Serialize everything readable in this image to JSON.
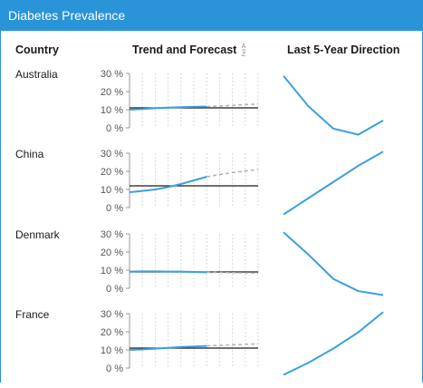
{
  "title": "Diabetes Prevalence",
  "headers": {
    "country": "Country",
    "trend": "Trend and Forecast",
    "direction": "Last 5-Year Direction"
  },
  "sort_icon_glyph": "A→Z",
  "y_ticks": [
    "30 %",
    "20 %",
    "10 %",
    "0 %"
  ],
  "colors": {
    "accent": "#2b94d9",
    "trend_line": "#3aa0e0",
    "forecast_line": "#b0b0b0",
    "reference_line": "#1a1a1a",
    "gridline": "#d8d8d8"
  },
  "chart_data": [
    {
      "type": "line",
      "title": "Australia",
      "ylim": [
        0,
        30
      ],
      "trend": [
        10,
        10.4,
        10.8,
        11.1,
        11.4,
        11.6,
        11.7
      ],
      "forecast": [
        11.7,
        12.0,
        12.4,
        12.8,
        13.1
      ],
      "reference": 11,
      "direction": [
        31,
        16,
        5,
        2,
        9
      ]
    },
    {
      "type": "line",
      "title": "China",
      "ylim": [
        0,
        30
      ],
      "trend": [
        8.5,
        9.2,
        10,
        11.3,
        13,
        15,
        17
      ],
      "forecast": [
        17,
        18.2,
        19.3,
        20.2,
        21
      ],
      "reference": 12,
      "direction": [
        2,
        10,
        18,
        26,
        33
      ]
    },
    {
      "type": "line",
      "title": "Denmark",
      "ylim": [
        0,
        30
      ],
      "trend": [
        9.2,
        9.3,
        9.3,
        9.2,
        9.2,
        9.0,
        8.8
      ],
      "forecast": [
        8.8,
        8.7,
        8.6,
        8.5,
        8.4
      ],
      "reference": 9,
      "direction": [
        33,
        22,
        10,
        4,
        2
      ]
    },
    {
      "type": "line",
      "title": "France",
      "ylim": [
        0,
        30
      ],
      "trend": [
        10,
        10.3,
        10.7,
        11.1,
        11.6,
        11.9,
        12.2
      ],
      "forecast": [
        12.2,
        12.5,
        12.8,
        13.1,
        13.3
      ],
      "reference": 11,
      "direction": [
        2,
        8,
        15,
        23,
        33
      ]
    }
  ]
}
